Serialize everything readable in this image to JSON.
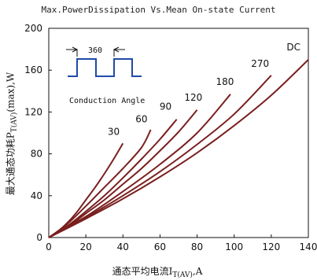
{
  "chart_data": {
    "type": "line",
    "title": "Max.PowerDissipation Vs.Mean On-state Current",
    "ylabel_main": "最大通态功耗P",
    "ylabel_sub": "T(AV)",
    "ylabel_suffix": "(max),W",
    "xlabel_main": "通态平均电流I",
    "xlabel_sub": "T(AV)",
    "xlabel_suffix": ",A",
    "xlim": [
      0,
      140
    ],
    "ylim": [
      0,
      200
    ],
    "xticks": [
      "0",
      "20",
      "40",
      "60",
      "80",
      "100",
      "120",
      "140"
    ],
    "yticks": [
      "0",
      "40",
      "80",
      "120",
      "160",
      "200"
    ],
    "grid": false,
    "inset": {
      "angle_label": "360",
      "caption": "Conduction Angle"
    },
    "series": [
      {
        "name": "30",
        "color": "#7a1f1f",
        "x": [
          0,
          5,
          10,
          15,
          20,
          25,
          30,
          35,
          40
        ],
        "y": [
          0,
          6,
          14,
          24,
          36,
          48,
          61,
          75,
          90
        ]
      },
      {
        "name": "60",
        "color": "#7a1f1f",
        "x": [
          0,
          10,
          20,
          30,
          40,
          50,
          55
        ],
        "y": [
          0,
          13,
          30,
          48,
          66,
          86,
          103
        ]
      },
      {
        "name": "90",
        "color": "#7a1f1f",
        "x": [
          0,
          10,
          20,
          30,
          40,
          50,
          60,
          69
        ],
        "y": [
          0,
          11,
          25,
          40,
          57,
          75,
          94,
          113
        ]
      },
      {
        "name": "120",
        "color": "#7a1f1f",
        "x": [
          0,
          10,
          20,
          30,
          40,
          50,
          60,
          70,
          80
        ],
        "y": [
          0,
          10,
          23,
          36,
          51,
          66,
          83,
          101,
          122
        ]
      },
      {
        "name": "180",
        "color": "#7a1f1f",
        "x": [
          0,
          20,
          40,
          60,
          80,
          98
        ],
        "y": [
          0,
          20,
          44,
          70,
          100,
          137
        ]
      },
      {
        "name": "270",
        "color": "#7a1f1f",
        "x": [
          0,
          20,
          40,
          60,
          80,
          100,
          120
        ],
        "y": [
          0,
          19,
          40,
          63,
          89,
          118,
          155
        ]
      },
      {
        "name": "DC",
        "color": "#7a1f1f",
        "x": [
          0,
          20,
          40,
          60,
          80,
          100,
          120,
          140
        ],
        "y": [
          0,
          18,
          37,
          58,
          81,
          107,
          136,
          170
        ]
      }
    ],
    "label_positions": {
      "30": [
        35,
        98
      ],
      "60": [
        50,
        110
      ],
      "90": [
        63,
        122
      ],
      "120": [
        78,
        131
      ],
      "180": [
        95,
        146
      ],
      "270": [
        114,
        163
      ],
      "DC": [
        132,
        179
      ]
    }
  }
}
